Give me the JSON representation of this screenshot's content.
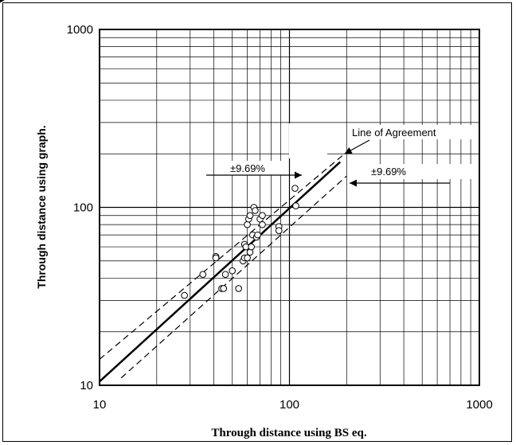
{
  "chart_data": {
    "type": "scatter",
    "title": "",
    "xlabel": "Through distance using BS eq.",
    "ylabel": "Through distance using graph.",
    "x_scale": "log",
    "y_scale": "log",
    "xlim": [
      10,
      1000
    ],
    "ylim": [
      10,
      1000
    ],
    "x_ticks": [
      "10",
      "100",
      "1000"
    ],
    "y_ticks": [
      "10",
      "100",
      "1000"
    ],
    "grid": true,
    "series": [
      {
        "kind": "points",
        "x": [
          28,
          35,
          41,
          41,
          44,
          45,
          46,
          50,
          54,
          57,
          58,
          58,
          59,
          60,
          60,
          61,
          62,
          62,
          63,
          64,
          65,
          66,
          67,
          68,
          70,
          72,
          72,
          88,
          88,
          107,
          108
        ],
        "y": [
          32,
          42,
          53,
          52,
          35,
          35,
          42,
          44,
          35,
          50,
          52,
          62,
          60,
          80,
          52,
          86,
          56,
          90,
          60,
          70,
          100,
          96,
          68,
          70,
          86,
          80,
          90,
          78,
          74,
          128,
          102
        ]
      },
      {
        "kind": "line",
        "name": "Line of Agreement",
        "style": "solid",
        "x": [
          10,
          185
        ],
        "y": [
          10.5,
          180
        ]
      },
      {
        "kind": "line",
        "style": "dashed",
        "x": [
          10,
          195
        ],
        "y": [
          14,
          200
        ]
      },
      {
        "kind": "line",
        "style": "dashed",
        "x": [
          13,
          200
        ],
        "y": [
          11,
          150
        ]
      }
    ],
    "annotations": [
      {
        "text": "Line of Agreement",
        "arrow_to": [
          195,
          200
        ]
      },
      {
        "text": "±9.69%",
        "arrow_to": [
          150,
          150
        ],
        "side": "upper"
      },
      {
        "text": "±9.69%",
        "arrow_to": [
          200,
          150
        ],
        "side": "lower"
      }
    ]
  }
}
